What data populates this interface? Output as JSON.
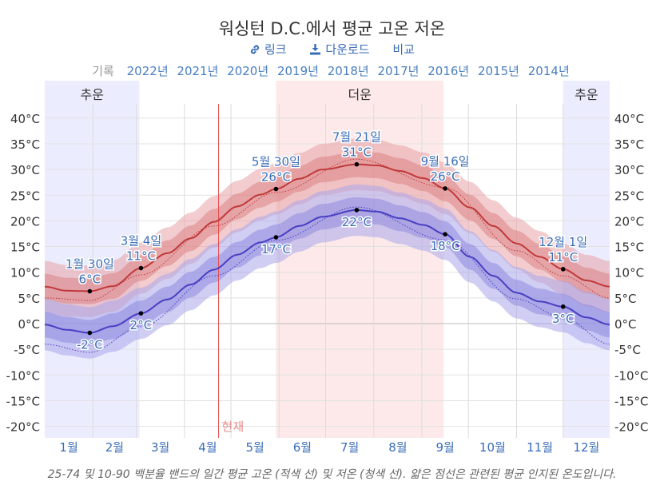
{
  "header": {
    "title": "워싱턴 D.C.에서 평균 고온 저온",
    "link_label": "링크",
    "download_label": "다운로드",
    "compare_label": "비교",
    "record_label": "기록",
    "years": [
      "2022년",
      "2021년",
      "2020년",
      "2019년",
      "2018년",
      "2017년",
      "2016년",
      "2015년",
      "2014년"
    ]
  },
  "colors": {
    "high": "#c0393b",
    "low": "#4a3fc2",
    "cold_band": "#ececff",
    "hot_band": "#fde9e9",
    "now_line": "#e84c4c",
    "label": "#3a6db7"
  },
  "chart_data": {
    "type": "line",
    "x_unit": "day_of_year",
    "xlim": [
      1,
      365
    ],
    "ylim": [
      -22,
      42
    ],
    "y_ticks": [
      40,
      35,
      30,
      25,
      20,
      15,
      10,
      5,
      0,
      -5,
      -10,
      -15,
      -20
    ],
    "y_tick_suffix": "°C",
    "months": [
      {
        "label": "1월",
        "start": 1
      },
      {
        "label": "2월",
        "start": 32
      },
      {
        "label": "3월",
        "start": 60
      },
      {
        "label": "4월",
        "start": 91
      },
      {
        "label": "5월",
        "start": 121
      },
      {
        "label": "6월",
        "start": 152
      },
      {
        "label": "7월",
        "start": 182
      },
      {
        "label": "8월",
        "start": 213
      },
      {
        "label": "9월",
        "start": 244
      },
      {
        "label": "10월",
        "start": 274
      },
      {
        "label": "11월",
        "start": 305
      },
      {
        "label": "12월",
        "start": 335
      }
    ],
    "seasons": [
      {
        "label": "추운",
        "from": 1,
        "to": 62,
        "kind": "cold"
      },
      {
        "label": "더운",
        "from": 150,
        "to": 258,
        "kind": "hot"
      },
      {
        "label": "추운",
        "from": 335,
        "to": 365,
        "kind": "cold"
      }
    ],
    "now": {
      "label": "현재",
      "day": 113
    },
    "high": {
      "days": [
        1,
        15,
        30,
        45,
        63,
        80,
        95,
        110,
        125,
        140,
        150,
        165,
        180,
        202,
        215,
        230,
        245,
        259,
        275,
        290,
        305,
        320,
        335,
        350,
        365
      ],
      "values": [
        7.2,
        6.4,
        6.3,
        7.3,
        10.8,
        13.7,
        16.6,
        19.8,
        22.8,
        25.1,
        26.2,
        28.2,
        30.0,
        31.0,
        30.8,
        29.7,
        28.3,
        26.3,
        22.6,
        19.0,
        15.6,
        13.0,
        10.6,
        8.4,
        7.2
      ]
    },
    "low": {
      "days": [
        1,
        15,
        30,
        45,
        63,
        80,
        95,
        110,
        125,
        140,
        150,
        165,
        180,
        202,
        215,
        230,
        245,
        259,
        275,
        290,
        305,
        320,
        335,
        350,
        365
      ],
      "values": [
        -0.2,
        -1.2,
        -1.8,
        -0.5,
        2.0,
        4.7,
        7.6,
        10.5,
        13.4,
        15.8,
        16.8,
        19.0,
        20.8,
        22.1,
        21.8,
        20.5,
        19.2,
        17.4,
        13.0,
        9.3,
        6.0,
        4.3,
        3.3,
        1.2,
        -0.2
      ]
    },
    "high_normal": {
      "days": [
        1,
        30,
        63,
        110,
        150,
        202,
        259,
        305,
        335,
        365
      ],
      "values": [
        5.0,
        4.5,
        9.5,
        19.0,
        25.5,
        32.0,
        26.5,
        14.2,
        9.3,
        5.0
      ]
    },
    "low_normal": {
      "days": [
        1,
        30,
        63,
        110,
        150,
        202,
        259,
        305,
        335,
        365
      ],
      "values": [
        -4.0,
        -5.6,
        -0.6,
        9.3,
        16.2,
        22.7,
        16.3,
        4.8,
        1.2,
        -4.0
      ]
    },
    "annotations": [
      {
        "day": 30,
        "series": "high",
        "date": "1월 30일",
        "value": "6°C"
      },
      {
        "day": 30,
        "series": "low",
        "date": "",
        "value": "-2°C"
      },
      {
        "day": 63,
        "series": "high",
        "date": "3월 4일",
        "value": "11°C"
      },
      {
        "day": 63,
        "series": "low",
        "date": "",
        "value": "2°C"
      },
      {
        "day": 150,
        "series": "high",
        "date": "5월 30일",
        "value": "26°C"
      },
      {
        "day": 150,
        "series": "low",
        "date": "",
        "value": "17°C"
      },
      {
        "day": 202,
        "series": "high",
        "date": "7월 21일",
        "value": "31°C"
      },
      {
        "day": 202,
        "series": "low",
        "date": "",
        "value": "22°C"
      },
      {
        "day": 259,
        "series": "high",
        "date": "9월 16일",
        "value": "26°C"
      },
      {
        "day": 259,
        "series": "low",
        "date": "",
        "value": "18°C"
      },
      {
        "day": 335,
        "series": "high",
        "date": "12월 1일",
        "value": "11°C"
      },
      {
        "day": 335,
        "series": "low",
        "date": "",
        "value": "3°C"
      }
    ]
  },
  "caption": "25-74 및 10-90 백분율 밴드의 일간 평균 고온 (적색 선) 및 저온 (청색 선). 얇은 점선은 관련된 평균 인지된 온도입니다."
}
